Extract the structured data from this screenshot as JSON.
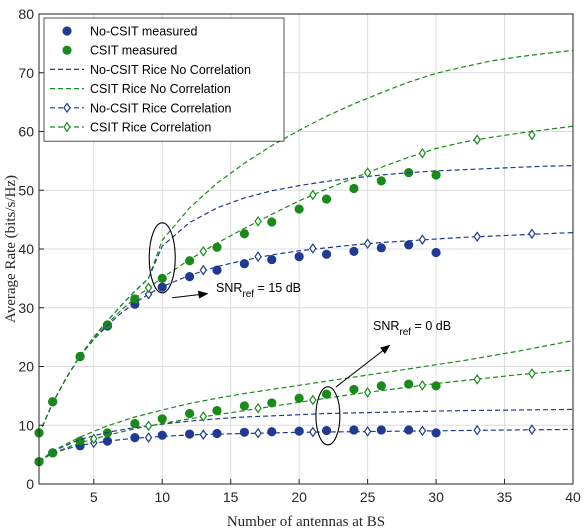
{
  "chart_data": {
    "type": "line",
    "title": "",
    "xlabel": "Number of antennas at BS",
    "ylabel": "Average Rate (bits/s/Hz)",
    "xlim": [
      1,
      40
    ],
    "ylim": [
      0,
      80
    ],
    "xticks": [
      5,
      10,
      15,
      20,
      25,
      30,
      35,
      40
    ],
    "yticks": [
      0,
      10,
      20,
      30,
      40,
      50,
      60,
      70,
      80
    ],
    "grid": true,
    "legend_position": "top-left",
    "colors": {
      "blue": "#1f3a93",
      "green": "#1a8a1a"
    },
    "series": [
      {
        "name": "No-CSIT measured",
        "color": "#1f3a93",
        "style": "markers",
        "marker": "filled-circle",
        "x": [
          1,
          2,
          4,
          6,
          8,
          10,
          12,
          14,
          16,
          18,
          20,
          22,
          24,
          26,
          28,
          30
        ],
        "y": [
          8.7,
          14,
          21.7,
          26.9,
          30.6,
          33.5,
          35.3,
          36.4,
          37.5,
          38.2,
          38.7,
          39.1,
          39.6,
          40.2,
          40.7,
          39.4
        ]
      },
      {
        "name": "CSIT measured",
        "color": "#1a8a1a",
        "style": "markers",
        "marker": "filled-circle",
        "x": [
          1,
          2,
          4,
          6,
          8,
          10,
          12,
          14,
          16,
          18,
          20,
          22,
          24,
          26,
          28,
          30
        ],
        "y": [
          8.7,
          14,
          21.7,
          27.1,
          31.5,
          35,
          38,
          40.3,
          42.6,
          44.6,
          46.8,
          48.5,
          50.3,
          51.6,
          53,
          52.6
        ]
      },
      {
        "name": "No-CSIT Rice No Correlation",
        "color": "#1f3a93",
        "style": "dashed",
        "x": [
          1,
          2,
          3,
          4,
          5,
          6,
          7,
          8,
          9,
          10,
          12,
          14,
          16,
          18,
          20,
          22,
          24,
          26,
          28,
          30,
          32,
          34,
          36,
          38,
          40
        ],
        "y": [
          8.5,
          13.8,
          18.1,
          21.8,
          25,
          27.8,
          30.4,
          32.8,
          35,
          40.5,
          44.5,
          47,
          48.7,
          49.9,
          50.8,
          51.5,
          52.1,
          52.6,
          53,
          53.3,
          53.5,
          53.7,
          53.9,
          54.1,
          54.2
        ]
      },
      {
        "name": "CSIT Rice No Correlation",
        "color": "#1a8a1a",
        "style": "dashed",
        "x": [
          1,
          2,
          3,
          4,
          5,
          6,
          7,
          8,
          9,
          10,
          12,
          14,
          16,
          18,
          20,
          22,
          24,
          26,
          28,
          30,
          32,
          34,
          36,
          38,
          40
        ],
        "y": [
          8.5,
          13.8,
          18.1,
          21.8,
          25,
          27.8,
          30.4,
          32.8,
          35,
          41.5,
          47,
          51.2,
          54.6,
          57.6,
          60.2,
          62.6,
          64.7,
          66.6,
          68.4,
          69.9,
          71,
          72,
          72.7,
          73.3,
          73.8
        ]
      },
      {
        "name": "No-CSIT Rice Correlation",
        "color": "#1f3a93",
        "style": "dashed",
        "marker": "open-diamond",
        "x": [
          1,
          2,
          3,
          4,
          5,
          6,
          7,
          8,
          9,
          10,
          12,
          14,
          16,
          18,
          20,
          22,
          24,
          26,
          28,
          30,
          32,
          34,
          36,
          38,
          40
        ],
        "y": [
          8.5,
          13.8,
          18.1,
          21.8,
          24.6,
          27,
          29.1,
          30.8,
          32.3,
          33.6,
          35.5,
          37,
          38.1,
          39,
          39.7,
          40.2,
          40.7,
          41.1,
          41.4,
          41.7,
          42,
          42.2,
          42.4,
          42.6,
          42.8
        ],
        "marker_x": [
          9,
          13,
          17,
          21,
          25,
          29,
          33,
          37
        ],
        "marker_y": [
          32.3,
          36.4,
          38.7,
          40.1,
          40.9,
          41.6,
          42.1,
          42.6
        ]
      },
      {
        "name": "CSIT Rice Correlation",
        "color": "#1a8a1a",
        "style": "dashed",
        "marker": "open-diamond",
        "x": [
          1,
          2,
          3,
          4,
          5,
          6,
          7,
          8,
          9,
          10,
          12,
          14,
          16,
          18,
          20,
          22,
          24,
          26,
          28,
          30,
          32,
          34,
          36,
          38,
          40
        ],
        "y": [
          8.5,
          13.8,
          18.1,
          21.8,
          24.7,
          27.3,
          29.6,
          31.6,
          33.4,
          35.1,
          38.2,
          41,
          43.5,
          45.9,
          48.2,
          50.2,
          52.1,
          53.9,
          55.6,
          57.1,
          58.2,
          59,
          59.7,
          60.3,
          60.9
        ],
        "marker_x": [
          9,
          13,
          17,
          21,
          25,
          29,
          33,
          37
        ],
        "marker_y": [
          33.4,
          39.6,
          44.7,
          49.2,
          53,
          56.3,
          58.6,
          59.4
        ]
      },
      {
        "name": "No-CSIT measured",
        "color": "#1f3a93",
        "style": "markers",
        "marker": "filled-circle",
        "x": [
          1,
          2,
          4,
          6,
          8,
          10,
          12,
          14,
          16,
          18,
          20,
          22,
          24,
          26,
          28,
          30
        ],
        "y": [
          3.8,
          5.3,
          6.5,
          7.3,
          7.9,
          8.3,
          8.5,
          8.6,
          8.8,
          8.9,
          9,
          9.1,
          9.2,
          9.2,
          9.2,
          8.7
        ]
      },
      {
        "name": "CSIT measured",
        "color": "#1a8a1a",
        "style": "markers",
        "marker": "filled-circle",
        "x": [
          1,
          2,
          4,
          6,
          8,
          10,
          12,
          14,
          16,
          18,
          20,
          22,
          24,
          26,
          28,
          30
        ],
        "y": [
          3.8,
          5.3,
          7.3,
          8.7,
          10.3,
          11.1,
          12,
          12.5,
          13.3,
          13.8,
          14.6,
          15.3,
          16.1,
          16.7,
          17,
          16.7
        ]
      },
      {
        "name": "No-CSIT Rice No Correlation",
        "color": "#1f3a93",
        "style": "dashed",
        "x": [
          1,
          2,
          4,
          6,
          8,
          10,
          12,
          14,
          16,
          18,
          20,
          22,
          24,
          26,
          28,
          30,
          32,
          34,
          36,
          38,
          40
        ],
        "y": [
          3.8,
          5.6,
          7.6,
          8.8,
          9.6,
          10.2,
          10.7,
          11.1,
          11.4,
          11.6,
          11.8,
          12,
          12.1,
          12.2,
          12.3,
          12.4,
          12.5,
          12.55,
          12.6,
          12.65,
          12.7
        ]
      },
      {
        "name": "CSIT Rice No Correlation",
        "color": "#1a8a1a",
        "style": "dashed",
        "x": [
          1,
          2,
          4,
          6,
          8,
          10,
          12,
          14,
          16,
          18,
          20,
          22,
          24,
          26,
          28,
          30,
          32,
          34,
          36,
          38,
          40
        ],
        "y": [
          3.8,
          5.6,
          8,
          9.9,
          11.4,
          12.6,
          13.7,
          14.6,
          15.4,
          16.1,
          16.8,
          17.5,
          18.2,
          18.9,
          19.6,
          20.3,
          21,
          21.8,
          22.6,
          23.5,
          24.4
        ]
      },
      {
        "name": "No-CSIT Rice Correlation",
        "color": "#1f3a93",
        "style": "dashed",
        "marker": "open-diamond",
        "x": [
          1,
          2,
          4,
          6,
          8,
          10,
          12,
          14,
          16,
          18,
          20,
          22,
          24,
          26,
          28,
          30,
          32,
          34,
          36,
          38,
          40
        ],
        "y": [
          3.8,
          5.3,
          6.6,
          7.3,
          7.8,
          8.1,
          8.35,
          8.5,
          8.6,
          8.7,
          8.8,
          8.85,
          8.9,
          8.95,
          9,
          9.05,
          9.1,
          9.15,
          9.2,
          9.25,
          9.3
        ],
        "marker_x": [
          5,
          9,
          13,
          17,
          21,
          25,
          29,
          33,
          37
        ],
        "marker_y": [
          7,
          7.9,
          8.4,
          8.65,
          8.85,
          8.95,
          9.05,
          9.15,
          9.25
        ]
      },
      {
        "name": "CSIT Rice Correlation",
        "color": "#1a8a1a",
        "style": "dashed",
        "marker": "open-diamond",
        "x": [
          1,
          2,
          4,
          6,
          8,
          10,
          12,
          14,
          16,
          18,
          20,
          22,
          24,
          26,
          28,
          30,
          32,
          34,
          36,
          38,
          40
        ],
        "y": [
          3.8,
          5.3,
          7,
          8.3,
          9.4,
          10.3,
          11.1,
          11.8,
          12.5,
          13.2,
          13.9,
          14.6,
          15.3,
          15.9,
          16.5,
          17.1,
          17.6,
          18.1,
          18.6,
          19,
          19.4
        ],
        "marker_x": [
          5,
          9,
          13,
          17,
          21,
          25,
          29,
          33,
          37
        ],
        "marker_y": [
          7.7,
          9.9,
          11.5,
          12.9,
          14.3,
          15.6,
          16.8,
          17.8,
          18.8
        ]
      }
    ],
    "annotations": [
      {
        "main": "SNR",
        "sub": "ref",
        "rest": " = 15 dB"
      },
      {
        "main": "SNR",
        "sub": "ref",
        "rest": " = 0 dB"
      }
    ]
  }
}
